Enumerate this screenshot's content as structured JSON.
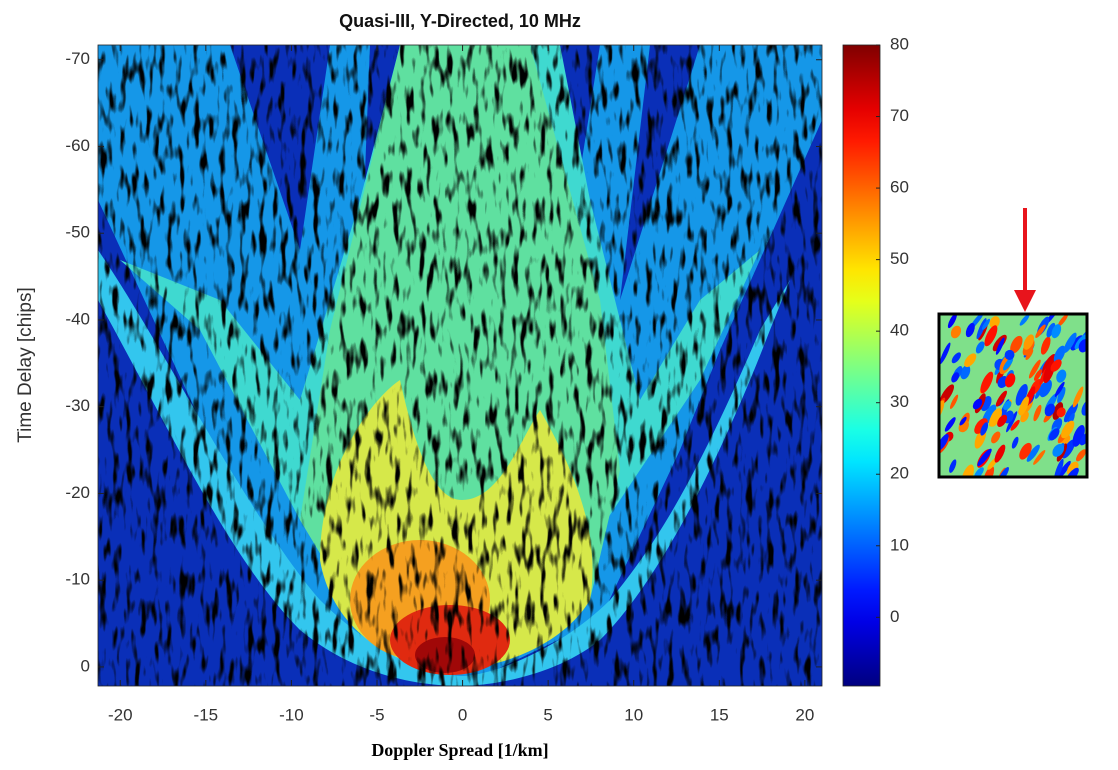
{
  "chart_data": {
    "type": "heatmap",
    "title": "Quasi-III, Y-Directed, 10 MHz",
    "x_label": "Doppler Spread [1/km]",
    "y_label": "Time Delay [chips]",
    "xlim": [
      -21.3,
      21
    ],
    "xticks": [
      -20,
      -15,
      -10,
      -5,
      0,
      5,
      10,
      15,
      20
    ],
    "ylim": [
      2.2,
      -71.7
    ],
    "yticks": [
      0,
      -10,
      -20,
      -30,
      -40,
      -50,
      -60,
      -70
    ],
    "colorbar": {
      "colormap": "jet",
      "lim": [
        -9.6,
        80
      ],
      "ticks": [
        0,
        10,
        20,
        30,
        40,
        50,
        60,
        70,
        80
      ]
    }
  }
}
